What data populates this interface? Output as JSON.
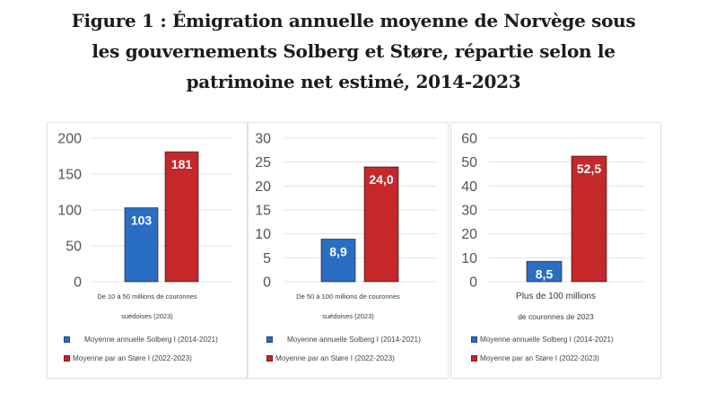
{
  "title": {
    "lines": [
      "Figure 1 : Émigration annuelle moyenne de Norvège sous",
      "les gouvernements Solberg et Støre, répartie selon le",
      "patrimoine net estimé, 2014-2023"
    ]
  },
  "colors": {
    "solberg": "#2a6ec4",
    "store": "#c4282a",
    "grid": "#e3e3e3",
    "tick_text": "#555555",
    "bar_label": "#ffffff"
  },
  "legend": {
    "solberg": "Moyenne annuelle Solberg I (2014-2021)",
    "store": "Moyenne par an Støre I (2022-2023)"
  },
  "chart_data": [
    {
      "type": "bar",
      "title": "",
      "category_lines": [
        "De 10 à 50 millions de couronnes",
        "suédoises (2023)"
      ],
      "categories": [
        "De 10 à 50 millions de couronnes suédoises (2023)"
      ],
      "series": [
        {
          "name": "Moyenne annuelle Solberg I (2014-2021)",
          "values": [
            103
          ],
          "labels": [
            "103"
          ]
        },
        {
          "name": "Moyenne par an Støre I (2022-2023)",
          "values": [
            181
          ],
          "labels": [
            "181"
          ]
        }
      ],
      "ylim": [
        0,
        200
      ],
      "yticks": [
        0,
        50,
        100,
        150,
        200
      ],
      "ytick_labels": [
        "0",
        "50",
        "100",
        "150",
        "200"
      ],
      "grid": true,
      "legend_position": "bottom",
      "xlabel": "",
      "ylabel": ""
    },
    {
      "type": "bar",
      "title": "",
      "category_lines": [
        "De 50 à 100 millions de couronnes",
        "suédoises (2023)"
      ],
      "categories": [
        "De 50 à 100 millions de couronnes suédoises (2023)"
      ],
      "series": [
        {
          "name": "Moyenne annuelle Solberg I (2014-2021)",
          "values": [
            8.9
          ],
          "labels": [
            "8,9"
          ]
        },
        {
          "name": "Moyenne par an Støre I (2022-2023)",
          "values": [
            24.0
          ],
          "labels": [
            "24,0"
          ]
        }
      ],
      "ylim": [
        0,
        30
      ],
      "yticks": [
        0,
        5,
        10,
        15,
        20,
        25,
        30
      ],
      "ytick_labels": [
        "0",
        "5",
        "10",
        "15",
        "20",
        "25",
        "30"
      ],
      "grid": true,
      "legend_position": "bottom",
      "xlabel": "",
      "ylabel": ""
    },
    {
      "type": "bar",
      "title": "",
      "category_lines": [
        "Plus de 100 millions",
        "de couronnes de 2023"
      ],
      "categories": [
        "Plus de 100 millions de couronnes de 2023"
      ],
      "series": [
        {
          "name": "Moyenne annuelle Solberg I (2014-2021)",
          "values": [
            8.5
          ],
          "labels": [
            "8,5"
          ]
        },
        {
          "name": "Moyenne par an Støre I (2022-2023)",
          "values": [
            52.5
          ],
          "labels": [
            "52,5"
          ]
        }
      ],
      "ylim": [
        0,
        60
      ],
      "yticks": [
        0,
        10,
        20,
        30,
        40,
        50,
        60
      ],
      "ytick_labels": [
        "0",
        "10",
        "20",
        "30",
        "40",
        "50",
        "60"
      ],
      "grid": true,
      "legend_position": "bottom",
      "xlabel": "",
      "ylabel": ""
    }
  ]
}
